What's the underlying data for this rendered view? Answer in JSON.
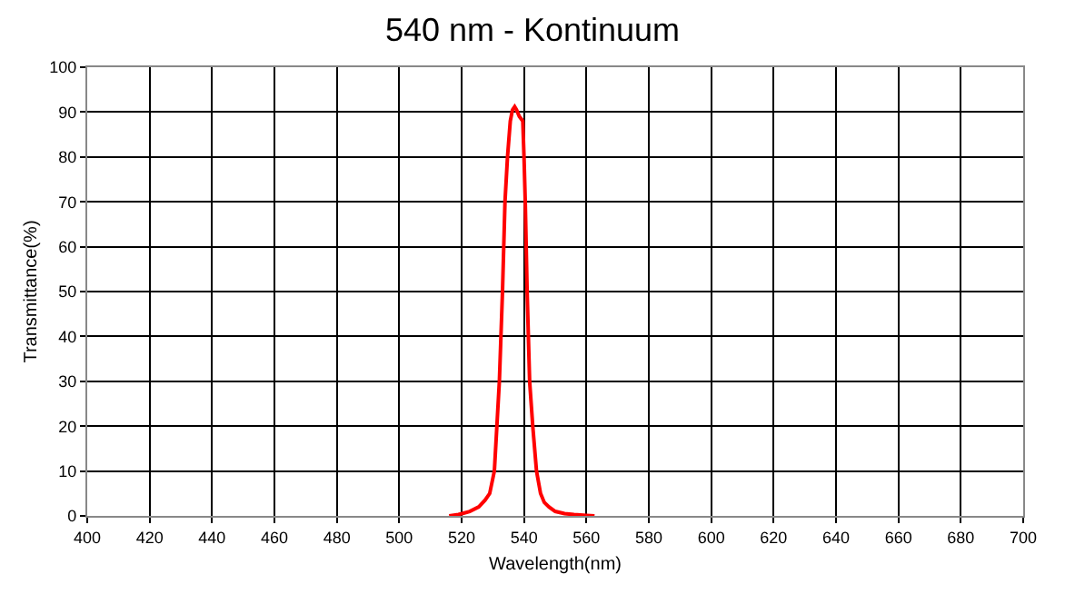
{
  "chart_data": {
    "type": "line",
    "title": "540 nm - Kontinuum",
    "xlabel": "Wavelength(nm)",
    "ylabel": "Transmittance(%)",
    "x": [
      516,
      519,
      522.6,
      525.5,
      527.5,
      529,
      530.5,
      531.3,
      532.1,
      533.1,
      533.9,
      534.7,
      535.6,
      536.3,
      537,
      537.6,
      538.5,
      539.6,
      540,
      540.4,
      541,
      541.8,
      542.8,
      544,
      545.3,
      546.5,
      548,
      550,
      553,
      556,
      560,
      562.6
    ],
    "series": [
      {
        "color": "#ff0000",
        "values": [
          0,
          0.3,
          1,
          2,
          3.5,
          5,
          10,
          20,
          30,
          50,
          70,
          80,
          88,
          90.5,
          91.2,
          90.5,
          89,
          88,
          80,
          70,
          50,
          30,
          20,
          10,
          5,
          3,
          2,
          1,
          0.5,
          0.3,
          0.1,
          0
        ]
      }
    ],
    "xlim": [
      400,
      700
    ],
    "xticks": [
      400,
      420,
      440,
      460,
      480,
      500,
      520,
      540,
      560,
      580,
      600,
      620,
      640,
      660,
      680,
      700
    ],
    "ylim": [
      0,
      100
    ],
    "yticks": [
      0,
      10,
      20,
      30,
      40,
      50,
      60,
      70,
      80,
      90,
      100
    ],
    "grid": true,
    "marker": "none",
    "line_style": "solid"
  }
}
